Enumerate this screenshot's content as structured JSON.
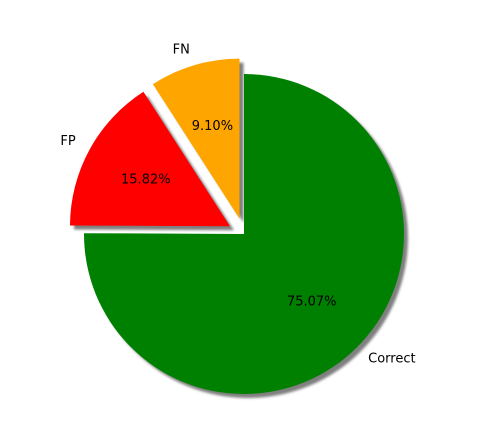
{
  "chart_data": {
    "type": "pie",
    "title": "",
    "start_angle_deg": 90,
    "direction": "counterclockwise",
    "shadow": true,
    "slices": [
      {
        "label": "FN",
        "value": 9.1,
        "pct_label": "9.10%",
        "color": "#ffa500",
        "exploded": true
      },
      {
        "label": "FP",
        "value": 15.82,
        "pct_label": "15.82%",
        "color": "#ff0000",
        "exploded": true
      },
      {
        "label": "Correct",
        "value": 75.07,
        "pct_label": "75.07%",
        "color": "#008000",
        "exploded": false
      }
    ]
  }
}
